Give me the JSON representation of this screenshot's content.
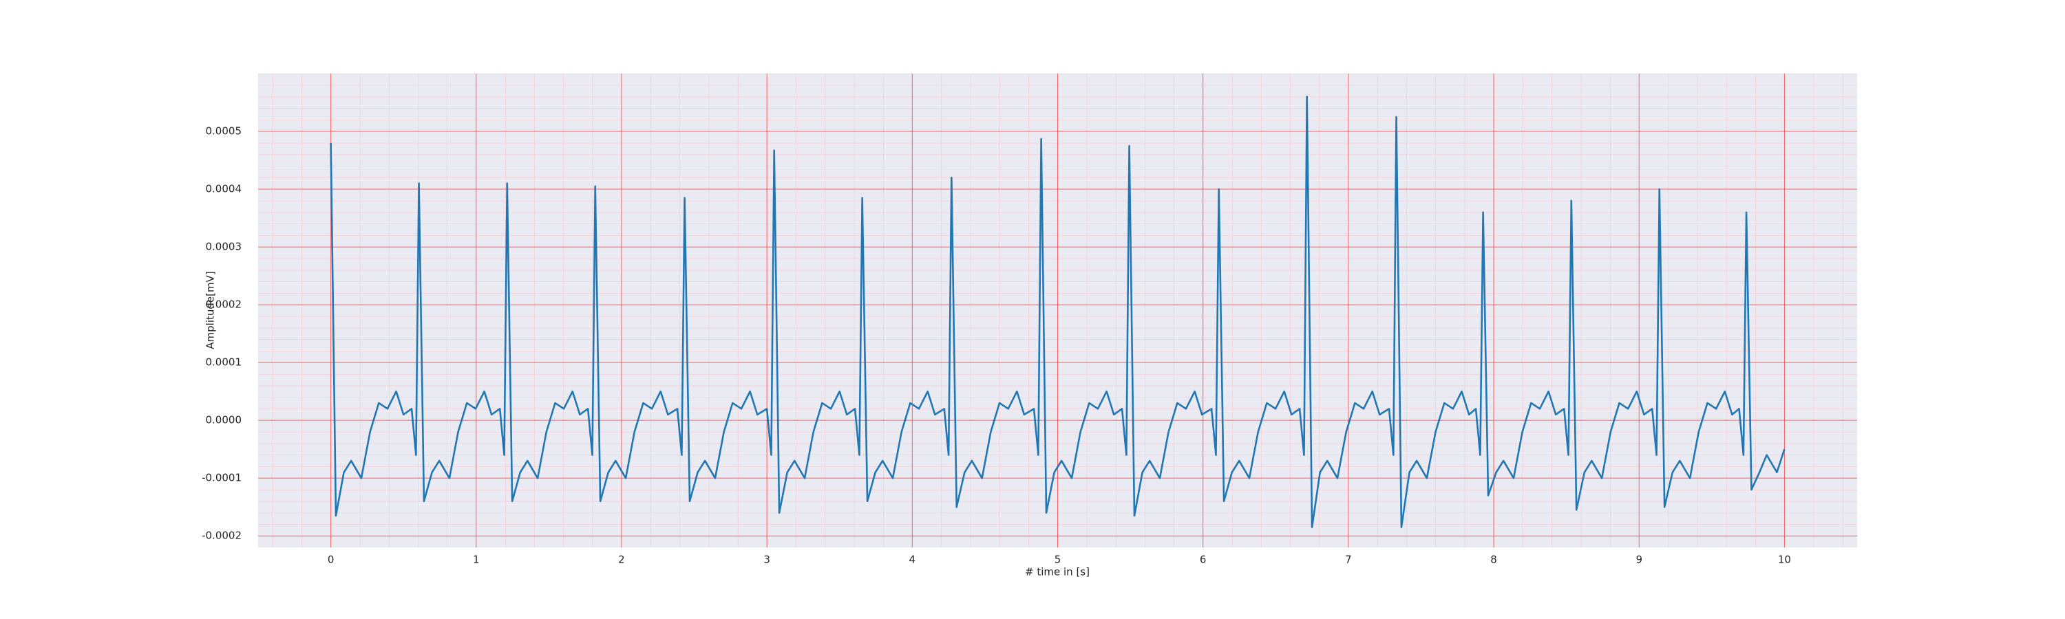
{
  "chart_data": {
    "type": "line",
    "xlabel": "# time in [s]",
    "ylabel": "Amplitude[mV]",
    "xlim": [
      -0.5,
      10.5
    ],
    "ylim": [
      -0.00022,
      0.0006
    ],
    "xticks": [
      0,
      1,
      2,
      3,
      4,
      5,
      6,
      7,
      8,
      9,
      10
    ],
    "yticks": [
      {
        "value": -0.0002,
        "label": "-0.0002"
      },
      {
        "value": -0.0001,
        "label": "-0.0001"
      },
      {
        "value": 0,
        "label": "0.0000"
      },
      {
        "value": 0.0001,
        "label": "0.0001"
      },
      {
        "value": 0.0002,
        "label": "0.0002"
      },
      {
        "value": 0.0003,
        "label": "0.0003"
      },
      {
        "value": 0.0004,
        "label": "0.0004"
      },
      {
        "value": 0.0005,
        "label": "0.0005"
      }
    ],
    "grid": true,
    "series": [
      {
        "color": "#1f77b4",
        "x": [
          0,
          0.035,
          0.09,
          0.14,
          0.21,
          0.27,
          0.33,
          0.39,
          0.45,
          0.5,
          0.556,
          0.586,
          0.606,
          0.641,
          0.696,
          0.746,
          0.816,
          0.876,
          0.936,
          0.996,
          1.056,
          1.106,
          1.163,
          1.193,
          1.213,
          1.248,
          1.303,
          1.353,
          1.423,
          1.483,
          1.543,
          1.603,
          1.663,
          1.713,
          1.769,
          1.799,
          1.819,
          1.854,
          1.909,
          1.959,
          2.029,
          2.089,
          2.149,
          2.209,
          2.269,
          2.319,
          2.384,
          2.414,
          2.434,
          2.469,
          2.524,
          2.574,
          2.644,
          2.704,
          2.764,
          2.824,
          2.884,
          2.934,
          3.0,
          3.03,
          3.05,
          3.085,
          3.14,
          3.19,
          3.26,
          3.32,
          3.38,
          3.44,
          3.5,
          3.55,
          3.606,
          3.636,
          3.656,
          3.691,
          3.746,
          3.796,
          3.866,
          3.926,
          3.986,
          4.046,
          4.106,
          4.156,
          4.22,
          4.25,
          4.27,
          4.305,
          4.36,
          4.41,
          4.48,
          4.54,
          4.6,
          4.66,
          4.72,
          4.77,
          4.837,
          4.867,
          4.887,
          4.922,
          4.977,
          5.027,
          5.097,
          5.157,
          5.217,
          5.277,
          5.337,
          5.387,
          5.443,
          5.473,
          5.493,
          5.528,
          5.583,
          5.633,
          5.703,
          5.763,
          5.823,
          5.883,
          5.943,
          5.993,
          6.059,
          6.089,
          6.109,
          6.144,
          6.199,
          6.249,
          6.319,
          6.379,
          6.439,
          6.499,
          6.559,
          6.609,
          6.665,
          6.695,
          6.715,
          6.75,
          6.805,
          6.855,
          6.925,
          6.985,
          7.045,
          7.105,
          7.165,
          7.215,
          7.28,
          7.31,
          7.33,
          7.365,
          7.42,
          7.47,
          7.54,
          7.6,
          7.66,
          7.72,
          7.78,
          7.83,
          7.877,
          7.907,
          7.927,
          7.962,
          8.017,
          8.067,
          8.137,
          8.197,
          8.257,
          8.317,
          8.377,
          8.427,
          8.484,
          8.514,
          8.534,
          8.569,
          8.624,
          8.674,
          8.744,
          8.804,
          8.864,
          8.924,
          8.984,
          9.034,
          9.09,
          9.12,
          9.14,
          9.175,
          9.23,
          9.28,
          9.35,
          9.41,
          9.47,
          9.53,
          9.59,
          9.64,
          9.688,
          9.718,
          9.738,
          9.773,
          9.828,
          9.878,
          9.948,
          10.0
        ],
        "values": [
          0.00048,
          -0.000165,
          -9e-05,
          -7e-05,
          -0.0001,
          -2e-05,
          3e-05,
          2e-05,
          5e-05,
          1e-05,
          2e-05,
          -6e-05,
          0.00041,
          -0.00014,
          -9e-05,
          -7e-05,
          -0.0001,
          -2e-05,
          3e-05,
          2e-05,
          5e-05,
          1e-05,
          2e-05,
          -6e-05,
          0.00041,
          -0.00014,
          -9e-05,
          -7e-05,
          -0.0001,
          -2e-05,
          3e-05,
          2e-05,
          5e-05,
          1e-05,
          2e-05,
          -6e-05,
          0.000405,
          -0.00014,
          -9e-05,
          -7e-05,
          -0.0001,
          -2e-05,
          3e-05,
          2e-05,
          5e-05,
          1e-05,
          2e-05,
          -6e-05,
          0.000385,
          -0.00014,
          -9e-05,
          -7e-05,
          -0.0001,
          -2e-05,
          3e-05,
          2e-05,
          5e-05,
          1e-05,
          2e-05,
          -6e-05,
          0.000467,
          -0.00016,
          -9e-05,
          -7e-05,
          -0.0001,
          -2e-05,
          3e-05,
          2e-05,
          5e-05,
          1e-05,
          2e-05,
          -6e-05,
          0.000385,
          -0.00014,
          -9e-05,
          -7e-05,
          -0.0001,
          -2e-05,
          3e-05,
          2e-05,
          5e-05,
          1e-05,
          2e-05,
          -6e-05,
          0.00042,
          -0.00015,
          -9e-05,
          -7e-05,
          -0.0001,
          -2e-05,
          3e-05,
          2e-05,
          5e-05,
          1e-05,
          2e-05,
          -6e-05,
          0.000487,
          -0.00016,
          -9e-05,
          -7e-05,
          -0.0001,
          -2e-05,
          3e-05,
          2e-05,
          5e-05,
          1e-05,
          2e-05,
          -6e-05,
          0.000475,
          -0.000165,
          -9e-05,
          -7e-05,
          -0.0001,
          -2e-05,
          3e-05,
          2e-05,
          5e-05,
          1e-05,
          2e-05,
          -6e-05,
          0.0004,
          -0.00014,
          -9e-05,
          -7e-05,
          -0.0001,
          -2e-05,
          3e-05,
          2e-05,
          5e-05,
          1e-05,
          2e-05,
          -6e-05,
          0.00056,
          -0.000185,
          -9e-05,
          -7e-05,
          -0.0001,
          -2e-05,
          3e-05,
          2e-05,
          5e-05,
          1e-05,
          2e-05,
          -6e-05,
          0.000525,
          -0.000185,
          -9e-05,
          -7e-05,
          -0.0001,
          -2e-05,
          3e-05,
          2e-05,
          5e-05,
          1e-05,
          2e-05,
          -6e-05,
          0.00036,
          -0.00013,
          -9e-05,
          -7e-05,
          -0.0001,
          -2e-05,
          3e-05,
          2e-05,
          5e-05,
          1e-05,
          2e-05,
          -6e-05,
          0.00038,
          -0.000155,
          -9e-05,
          -7e-05,
          -0.0001,
          -2e-05,
          3e-05,
          2e-05,
          5e-05,
          1e-05,
          2e-05,
          -6e-05,
          0.0004,
          -0.00015,
          -9e-05,
          -7e-05,
          -0.0001,
          -2e-05,
          3e-05,
          2e-05,
          5e-05,
          1e-05,
          2e-05,
          -6e-05,
          0.00036,
          -0.00012,
          -9e-05,
          -6e-05,
          -9e-05,
          -5e-05
        ]
      }
    ]
  }
}
